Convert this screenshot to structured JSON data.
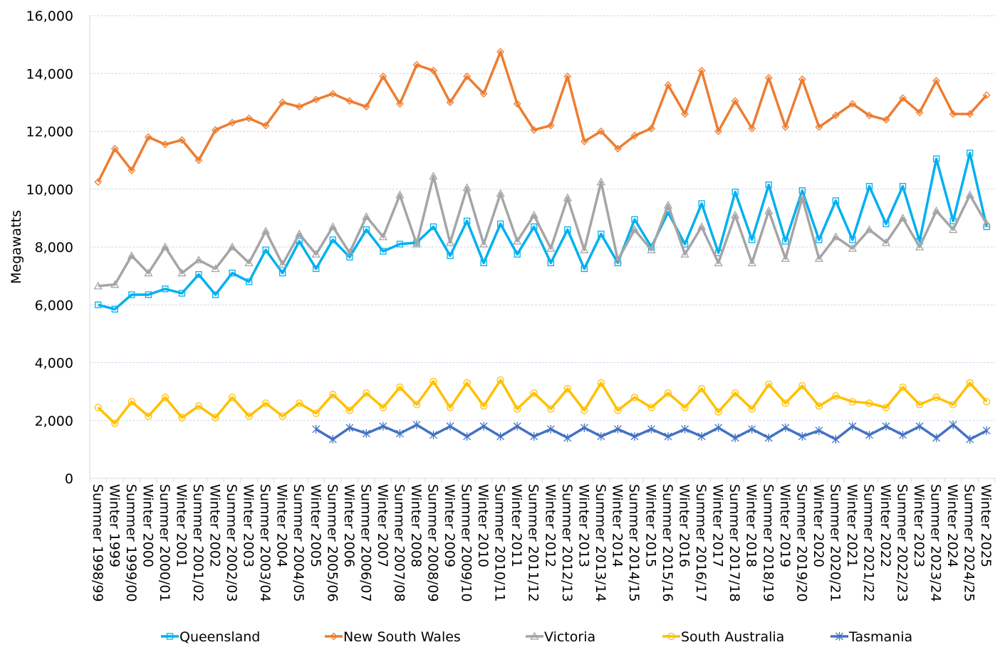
{
  "chart_data": {
    "type": "line",
    "title": "",
    "xlabel": "",
    "ylabel": "Megawatts",
    "ylim": [
      0,
      16000
    ],
    "yticks": [
      0,
      2000,
      4000,
      6000,
      8000,
      10000,
      12000,
      14000,
      16000
    ],
    "ytick_labels": [
      "0",
      "2,000",
      "4,000",
      "6,000",
      "8,000",
      "10,000",
      "12,000",
      "14,000",
      "16,000"
    ],
    "grid": true,
    "legend_position": "bottom",
    "categories": [
      "Summer 1998/99",
      "Winter 1999",
      "Summer 1999/00",
      "Winter 2000",
      "Summer 2000/01",
      "Winter 2001",
      "Summer 2001/02",
      "Winter 2002",
      "Summer 2002/03",
      "Winter 2003",
      "Summer 2003/04",
      "Winter 2004",
      "Summer 2004/05",
      "Winter 2005",
      "Summer 2005/06",
      "Winter 2006",
      "Summer 2006/07",
      "Winter 2007",
      "Summer 2007/08",
      "Winter 2008",
      "Summer 2008/09",
      "Winter 2009",
      "Summer 2009/10",
      "Winter 2010",
      "Summer 2010/11",
      "Winter 2011",
      "Summer 2011/12",
      "Winter 2012",
      "Summer 2012/13",
      "Winter 2013",
      "Summer 2013/14",
      "Winter 2014",
      "Summer 2014/15",
      "Winter 2015",
      "Summer 2015/16",
      "Winter 2016",
      "Summer 2016/17",
      "Winter 2017",
      "Summer 2017/18",
      "Winter 2018",
      "Summer 2018/19",
      "Winter 2019",
      "Summer 2019/20",
      "Winter 2020",
      "Summer 2020/21",
      "Winter 2021",
      "Summer 2021/22",
      "Winter 2022",
      "Summer 2022/23",
      "Winter 2023",
      "Summer 2023/24",
      "Winter 2024",
      "Summer 2024/25",
      "Winter 2025"
    ],
    "series": [
      {
        "name": "Queensland",
        "color": "#00B0F0",
        "marker": "square",
        "values": [
          6000,
          5850,
          6350,
          6350,
          6550,
          6400,
          7050,
          6350,
          7100,
          6800,
          7900,
          7100,
          8200,
          7250,
          8250,
          7650,
          8600,
          7850,
          8100,
          8150,
          8700,
          7700,
          8900,
          7450,
          8800,
          7750,
          8700,
          7450,
          8600,
          7250,
          8450,
          7450,
          8950,
          8000,
          9200,
          8100,
          9500,
          7800,
          9900,
          8250,
          10150,
          8200,
          9950,
          8250,
          9600,
          8250,
          10100,
          8800,
          10100,
          8200,
          11050,
          8900,
          11250,
          8700
        ]
      },
      {
        "name": "New South Wales",
        "color": "#ED7D31",
        "marker": "diamond",
        "values": [
          10250,
          11400,
          10650,
          11800,
          11550,
          11700,
          11000,
          12050,
          12300,
          12450,
          12200,
          13000,
          12850,
          13100,
          13300,
          13050,
          12850,
          13900,
          12950,
          14300,
          14100,
          13000,
          13900,
          13300,
          14750,
          12950,
          12050,
          12200,
          13900,
          11650,
          12000,
          11400,
          11850,
          12100,
          13600,
          12600,
          14100,
          12000,
          13050,
          12100,
          13850,
          12150,
          13800,
          12150,
          12550,
          12950,
          12550,
          12400,
          13150,
          12650,
          13750,
          12600,
          12600,
          13250
        ]
      },
      {
        "name": "Victoria",
        "color": "#A5A5A5",
        "marker": "triangle",
        "values": [
          6650,
          6700,
          7700,
          7100,
          8000,
          7100,
          7550,
          7250,
          8000,
          7450,
          8550,
          7400,
          8450,
          7750,
          8700,
          7800,
          9050,
          8350,
          9800,
          8100,
          10450,
          8150,
          10050,
          8100,
          9850,
          8200,
          9100,
          7950,
          9700,
          7900,
          10250,
          7550,
          8600,
          7900,
          9450,
          7750,
          8700,
          7450,
          9100,
          7450,
          9250,
          7600,
          9700,
          7600,
          8350,
          7950,
          8600,
          8150,
          9000,
          8000,
          9250,
          8600,
          9800,
          8800
        ]
      },
      {
        "name": "South Australia",
        "color": "#FFC000",
        "marker": "circle",
        "values": [
          2450,
          1900,
          2650,
          2150,
          2800,
          2100,
          2500,
          2100,
          2800,
          2150,
          2600,
          2150,
          2600,
          2250,
          2900,
          2350,
          2950,
          2450,
          3150,
          2550,
          3350,
          2450,
          3300,
          2500,
          3400,
          2400,
          2950,
          2400,
          3100,
          2350,
          3300,
          2350,
          2800,
          2450,
          2950,
          2450,
          3100,
          2300,
          2950,
          2400,
          3250,
          2600,
          3200,
          2500,
          2850,
          2650,
          2600,
          2450,
          3150,
          2550,
          2800,
          2550,
          3300,
          2650
        ]
      },
      {
        "name": "Tasmania",
        "color": "#4472C4",
        "marker": "star",
        "values": [
          null,
          null,
          null,
          null,
          null,
          null,
          null,
          null,
          null,
          null,
          null,
          null,
          null,
          1700,
          1350,
          1750,
          1550,
          1800,
          1550,
          1850,
          1500,
          1800,
          1450,
          1800,
          1450,
          1800,
          1450,
          1700,
          1400,
          1750,
          1450,
          1700,
          1450,
          1700,
          1450,
          1700,
          1450,
          1750,
          1400,
          1700,
          1400,
          1750,
          1450,
          1650,
          1350,
          1800,
          1500,
          1800,
          1500,
          1800,
          1400,
          1850,
          1350,
          1650
        ]
      }
    ]
  }
}
